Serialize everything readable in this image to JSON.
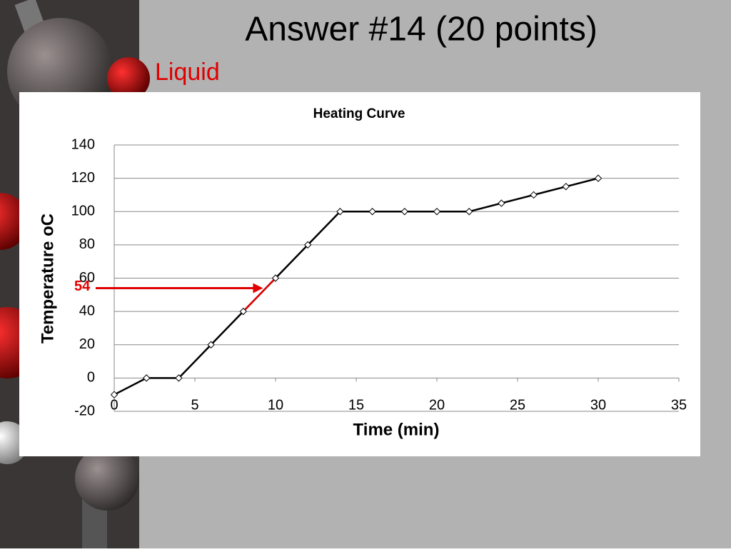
{
  "slide": {
    "title": "Answer #14 (20 points)",
    "subtitle": "Liquid"
  },
  "chart_data": {
    "type": "line",
    "title": "Heating Curve",
    "x_label": "Time (min)",
    "y_label": "Temperature oC",
    "x": [
      0,
      2,
      4,
      6,
      8,
      10,
      12,
      14,
      16,
      18,
      20,
      22,
      24,
      26,
      28,
      30
    ],
    "series": [
      {
        "color": "#000000",
        "values": [
          -10,
          0,
          0,
          20,
          40,
          60,
          80,
          100,
          100,
          100,
          100,
          100,
          105,
          110,
          115,
          120
        ]
      },
      {
        "color": "#e00000",
        "values": [
          null,
          null,
          null,
          null,
          40,
          60,
          null,
          null,
          null,
          null,
          null,
          null,
          null,
          null,
          null,
          null
        ]
      }
    ],
    "xlim": [
      0,
      35
    ],
    "xticks": [
      0,
      5,
      10,
      15,
      20,
      25,
      30,
      35
    ],
    "ylim": [
      -20,
      140
    ],
    "yticks": [
      -20,
      0,
      20,
      40,
      60,
      80,
      100,
      120,
      140
    ],
    "grid": true,
    "annotation": {
      "y": 54,
      "color": "#e00000"
    }
  }
}
